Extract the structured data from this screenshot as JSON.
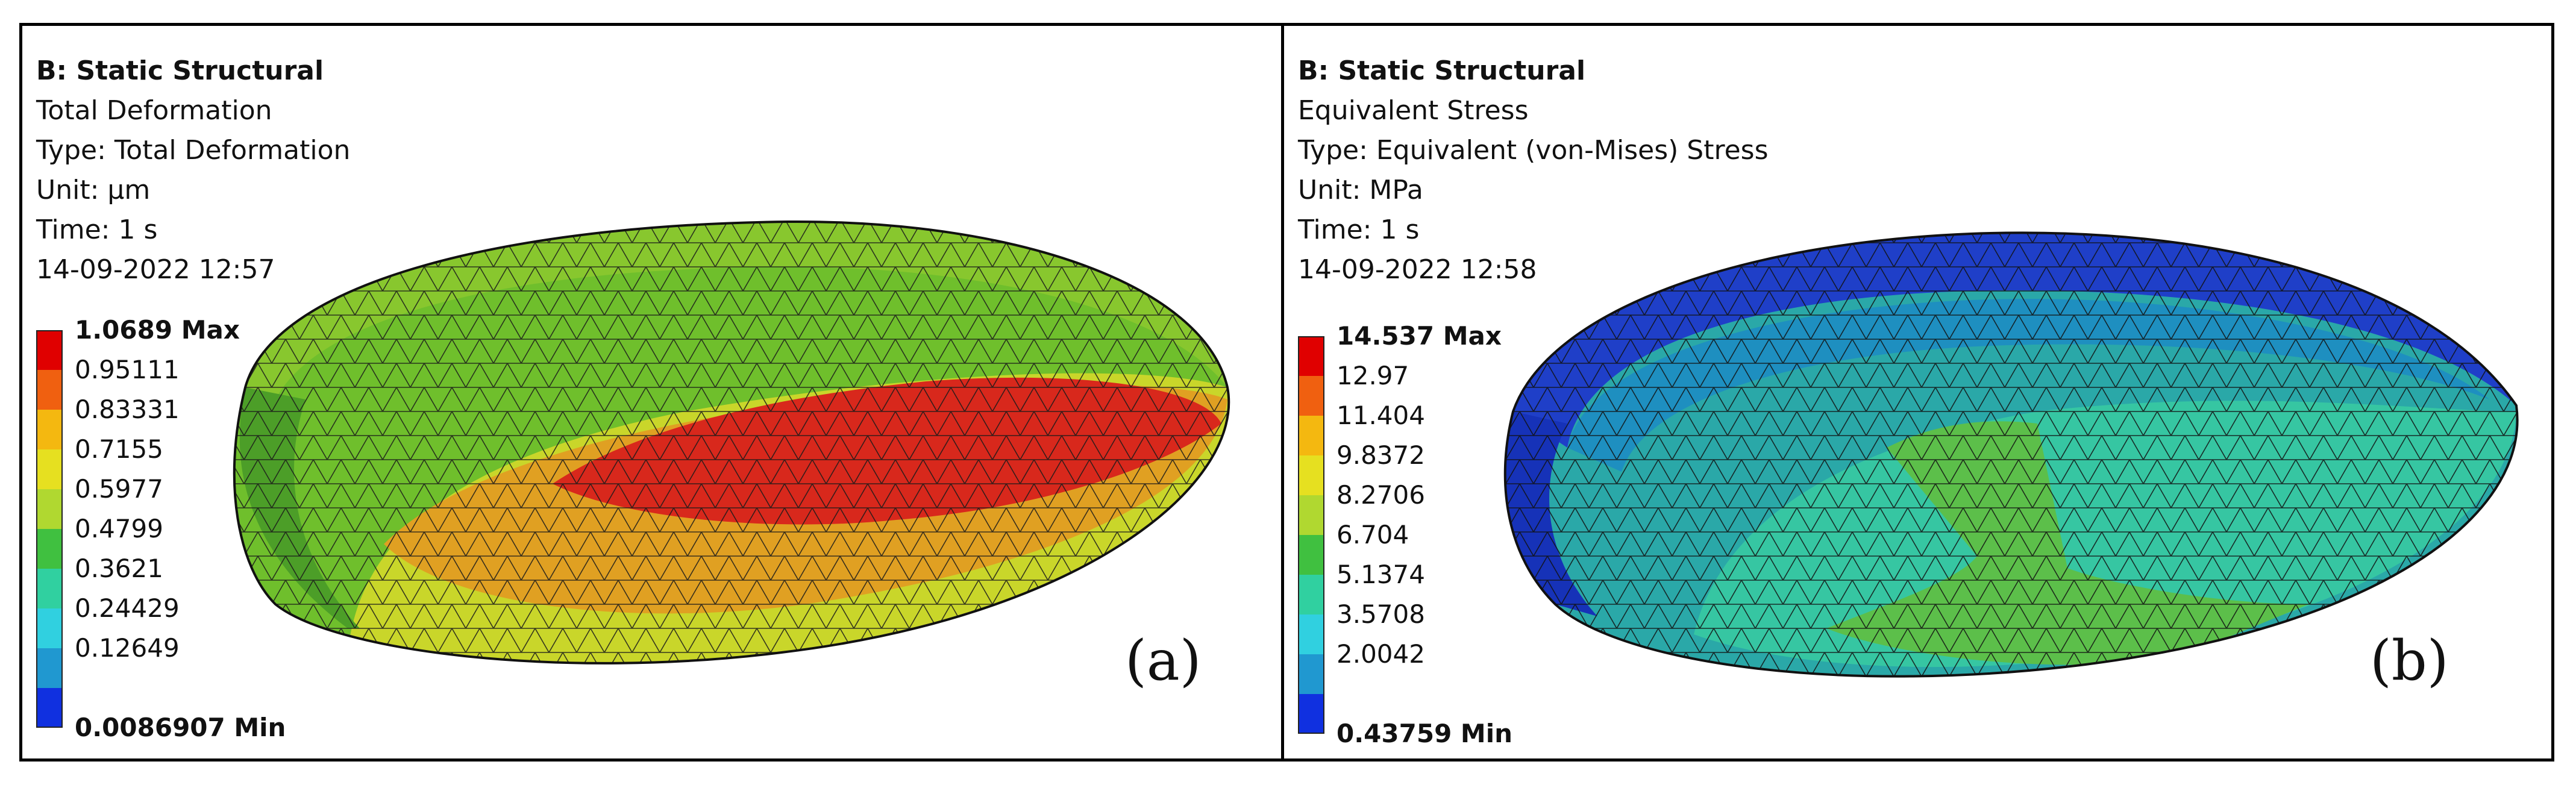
{
  "panels": [
    {
      "header": "B: Static Structural",
      "result_name": "Total Deformation",
      "type_line": "Type: Total Deformation",
      "unit_line": "Unit: µm",
      "time_line": "Time: 1 s",
      "timestamp": "14-09-2022 12:57",
      "legend_max": "1.0689 Max",
      "legend_values": [
        "0.95111",
        "0.83331",
        "0.7155",
        "0.5977",
        "0.4799",
        "0.3621",
        "0.24429",
        "0.12649"
      ],
      "legend_min": "0.0086907 Min",
      "tag": "(a)"
    },
    {
      "header": "B: Static Structural",
      "result_name": "Equivalent Stress",
      "type_line": "Type: Equivalent (von-Mises) Stress",
      "unit_line": "Unit: MPa",
      "time_line": "Time: 1 s",
      "timestamp": "14-09-2022 12:58",
      "legend_max": "14.537 Max",
      "legend_values": [
        "12.97",
        "11.404",
        "9.8372",
        "8.2706",
        "6.704",
        "5.1374",
        "3.5708",
        "2.0042"
      ],
      "legend_min": "0.43759 Min",
      "tag": "(b)"
    }
  ],
  "colormap": [
    "#e00000",
    "#f06010",
    "#f4b810",
    "#e6e020",
    "#b0d830",
    "#40c040",
    "#30d0a0",
    "#30d0e0",
    "#2098d0",
    "#1030e0"
  ]
}
